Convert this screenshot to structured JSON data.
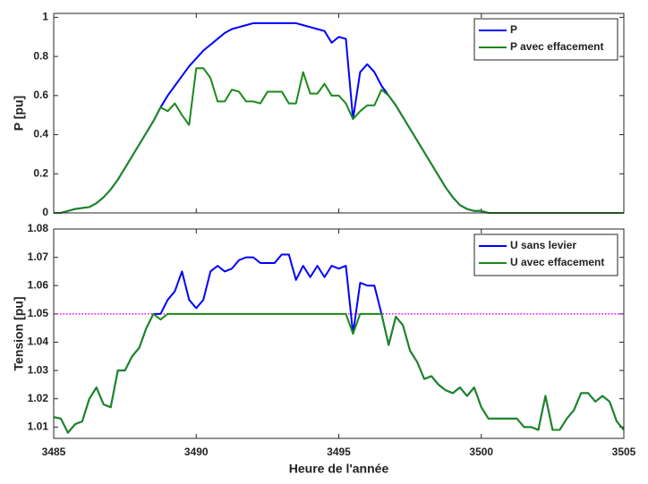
{
  "chart_data": [
    {
      "type": "line",
      "ylabel": "P [pu]",
      "x": [
        3485,
        3485.25,
        3485.5,
        3485.75,
        3486,
        3486.25,
        3486.5,
        3486.75,
        3487,
        3487.25,
        3487.5,
        3487.75,
        3488,
        3488.25,
        3488.5,
        3488.75,
        3489,
        3489.25,
        3489.5,
        3489.75,
        3490,
        3490.25,
        3490.5,
        3490.75,
        3491,
        3491.25,
        3491.5,
        3491.75,
        3492,
        3492.25,
        3492.5,
        3492.75,
        3493,
        3493.25,
        3493.5,
        3493.75,
        3494,
        3494.25,
        3494.5,
        3494.75,
        3495,
        3495.25,
        3495.5,
        3495.75,
        3496,
        3496.25,
        3496.5,
        3496.75,
        3497,
        3497.25,
        3497.5,
        3497.75,
        3498,
        3498.25,
        3498.5,
        3498.75,
        3499,
        3499.25,
        3499.5,
        3499.75,
        3500,
        3500.25,
        3500.5,
        3500.75,
        3501,
        3501.25,
        3501.5,
        3501.75,
        3502,
        3502.25,
        3502.5,
        3502.75,
        3503,
        3503.25,
        3503.5,
        3503.75,
        3504,
        3504.25,
        3504.5,
        3504.75,
        3505
      ],
      "series": [
        {
          "name": "P",
          "color": "#0000ff",
          "values": [
            0,
            0,
            0.01,
            0.02,
            0.025,
            0.03,
            0.05,
            0.08,
            0.12,
            0.17,
            0.23,
            0.29,
            0.35,
            0.41,
            0.47,
            0.54,
            0.6,
            0.65,
            0.7,
            0.75,
            0.79,
            0.83,
            0.86,
            0.89,
            0.92,
            0.94,
            0.95,
            0.96,
            0.97,
            0.97,
            0.97,
            0.97,
            0.97,
            0.97,
            0.97,
            0.96,
            0.95,
            0.94,
            0.93,
            0.87,
            0.9,
            0.89,
            0.48,
            0.72,
            0.76,
            0.72,
            0.65,
            0.6,
            0.55,
            0.49,
            0.43,
            0.37,
            0.31,
            0.25,
            0.19,
            0.13,
            0.08,
            0.04,
            0.02,
            0.01,
            0.01,
            0,
            0,
            0,
            0,
            0,
            0,
            0,
            0,
            0,
            0,
            0,
            0,
            0,
            0,
            0,
            0,
            0,
            0,
            0,
            0
          ]
        },
        {
          "name": "P avec effacement",
          "color": "#1a8a1a",
          "values": [
            0,
            0,
            0.01,
            0.02,
            0.025,
            0.03,
            0.05,
            0.08,
            0.12,
            0.17,
            0.23,
            0.29,
            0.35,
            0.41,
            0.47,
            0.54,
            0.52,
            0.56,
            0.5,
            0.45,
            0.74,
            0.74,
            0.69,
            0.57,
            0.57,
            0.63,
            0.62,
            0.57,
            0.57,
            0.56,
            0.62,
            0.62,
            0.62,
            0.56,
            0.56,
            0.72,
            0.61,
            0.61,
            0.66,
            0.6,
            0.6,
            0.56,
            0.48,
            0.52,
            0.55,
            0.55,
            0.63,
            0.6,
            0.55,
            0.49,
            0.43,
            0.37,
            0.31,
            0.25,
            0.19,
            0.13,
            0.08,
            0.04,
            0.02,
            0.01,
            0.01,
            0,
            0,
            0,
            0,
            0,
            0,
            0,
            0,
            0,
            0,
            0,
            0,
            0,
            0,
            0,
            0,
            0,
            0,
            0,
            0
          ]
        }
      ],
      "xlim": [
        3485,
        3505
      ],
      "xticks": [
        3485,
        3490,
        3495,
        3500,
        3505
      ],
      "ylim": [
        0,
        1.02
      ],
      "yticks": [
        0,
        0.2,
        0.4,
        0.6,
        0.8,
        1
      ],
      "legend": "upper right"
    },
    {
      "type": "line",
      "ylabel": "Tension [pu]",
      "xlabel": "Heure de l'année",
      "x": [
        3485,
        3485.25,
        3485.5,
        3485.75,
        3486,
        3486.25,
        3486.5,
        3486.75,
        3487,
        3487.25,
        3487.5,
        3487.75,
        3488,
        3488.25,
        3488.5,
        3488.75,
        3489,
        3489.25,
        3489.5,
        3489.75,
        3490,
        3490.25,
        3490.5,
        3490.75,
        3491,
        3491.25,
        3491.5,
        3491.75,
        3492,
        3492.25,
        3492.5,
        3492.75,
        3493,
        3493.25,
        3493.5,
        3493.75,
        3494,
        3494.25,
        3494.5,
        3494.75,
        3495,
        3495.25,
        3495.5,
        3495.75,
        3496,
        3496.25,
        3496.5,
        3496.75,
        3497,
        3497.25,
        3497.5,
        3497.75,
        3498,
        3498.25,
        3498.5,
        3498.75,
        3499,
        3499.25,
        3499.5,
        3499.75,
        3500,
        3500.25,
        3500.5,
        3500.75,
        3501,
        3501.25,
        3501.5,
        3501.75,
        3502,
        3502.25,
        3502.5,
        3502.75,
        3503,
        3503.25,
        3503.5,
        3503.75,
        3504,
        3504.25,
        3504.5,
        3504.75,
        3505
      ],
      "series": [
        {
          "name": "U sans levier",
          "color": "#0000ff",
          "values": [
            1.0135,
            1.013,
            1.008,
            1.011,
            1.012,
            1.02,
            1.024,
            1.018,
            1.017,
            1.03,
            1.03,
            1.035,
            1.038,
            1.045,
            1.05,
            1.05,
            1.055,
            1.058,
            1.065,
            1.055,
            1.052,
            1.055,
            1.065,
            1.067,
            1.065,
            1.066,
            1.069,
            1.07,
            1.07,
            1.068,
            1.068,
            1.068,
            1.071,
            1.071,
            1.062,
            1.067,
            1.063,
            1.067,
            1.063,
            1.067,
            1.066,
            1.067,
            1.043,
            1.061,
            1.06,
            1.06,
            1.05,
            1.039,
            1.049,
            1.046,
            1.037,
            1.033,
            1.027,
            1.028,
            1.025,
            1.023,
            1.022,
            1.024,
            1.021,
            1.024,
            1.017,
            1.013,
            1.013,
            1.013,
            1.013,
            1.013,
            1.01,
            1.01,
            1.009,
            1.021,
            1.009,
            1.009,
            1.013,
            1.016,
            1.022,
            1.022,
            1.019,
            1.021,
            1.019,
            1.012,
            1.009
          ]
        },
        {
          "name": "U avec effacement",
          "color": "#1a8a1a",
          "values": [
            1.0135,
            1.013,
            1.008,
            1.011,
            1.012,
            1.02,
            1.024,
            1.018,
            1.017,
            1.03,
            1.03,
            1.035,
            1.038,
            1.045,
            1.05,
            1.048,
            1.05,
            1.05,
            1.05,
            1.05,
            1.05,
            1.05,
            1.05,
            1.05,
            1.05,
            1.05,
            1.05,
            1.05,
            1.05,
            1.05,
            1.05,
            1.05,
            1.05,
            1.05,
            1.05,
            1.05,
            1.05,
            1.05,
            1.05,
            1.05,
            1.05,
            1.05,
            1.043,
            1.05,
            1.05,
            1.05,
            1.05,
            1.039,
            1.049,
            1.046,
            1.037,
            1.033,
            1.027,
            1.028,
            1.025,
            1.023,
            1.022,
            1.024,
            1.021,
            1.024,
            1.017,
            1.013,
            1.013,
            1.013,
            1.013,
            1.013,
            1.01,
            1.01,
            1.009,
            1.021,
            1.009,
            1.009,
            1.013,
            1.016,
            1.022,
            1.022,
            1.019,
            1.021,
            1.019,
            1.012,
            1.009
          ]
        }
      ],
      "hline": {
        "value": 1.05,
        "color": "#ff00ff"
      },
      "xlim": [
        3485,
        3505
      ],
      "xticks": [
        3485,
        3490,
        3495,
        3500,
        3505
      ],
      "ylim": [
        1.006,
        1.08
      ],
      "yticks": [
        1.01,
        1.02,
        1.03,
        1.04,
        1.05,
        1.06,
        1.07,
        1.08
      ],
      "legend": "upper right"
    }
  ]
}
